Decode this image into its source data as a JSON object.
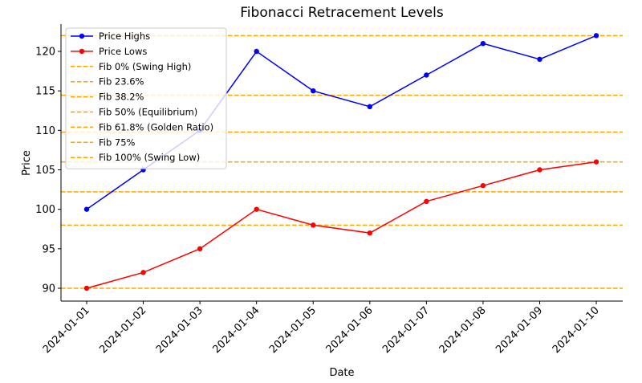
{
  "chart_data": {
    "type": "line",
    "title": "Fibonacci Retracement Levels",
    "xlabel": "Date",
    "ylabel": "Price",
    "categories": [
      "2024-01-01",
      "2024-01-02",
      "2024-01-03",
      "2024-01-04",
      "2024-01-05",
      "2024-01-06",
      "2024-01-07",
      "2024-01-08",
      "2024-01-09",
      "2024-01-10"
    ],
    "ylim": [
      88.4,
      122.8
    ],
    "yticks": [
      90,
      95,
      100,
      105,
      110,
      115,
      120
    ],
    "grid": false,
    "legend_position": "upper left",
    "series": [
      {
        "name": "Price Highs",
        "color": "#0000ff",
        "marker": "o",
        "values": [
          100,
          105,
          110,
          120,
          115,
          113,
          117,
          121,
          119,
          122
        ]
      },
      {
        "name": "Price Lows",
        "color": "#ff0000",
        "marker": "o",
        "values": [
          90,
          92,
          95,
          100,
          98,
          97,
          101,
          103,
          105,
          106
        ]
      }
    ],
    "fib_levels": [
      {
        "name": "Fib 0% (Swing High)",
        "value": 122.0,
        "color": "#ffa500"
      },
      {
        "name": "Fib 23.6%",
        "value": 114.45,
        "color": "#ffa500"
      },
      {
        "name": "Fib 38.2%",
        "value": 109.78,
        "color": "#ffa500"
      },
      {
        "name": "Fib 50% (Equilibrium)",
        "value": 106.0,
        "color": "#ffa500"
      },
      {
        "name": "Fib 61.8% (Golden Ratio)",
        "value": 102.22,
        "color": "#ffa500"
      },
      {
        "name": "Fib 75%",
        "value": 98.0,
        "color": "#ffa500"
      },
      {
        "name": "Fib 100% (Swing Low)",
        "value": 90.0,
        "color": "#ffa500"
      }
    ]
  }
}
